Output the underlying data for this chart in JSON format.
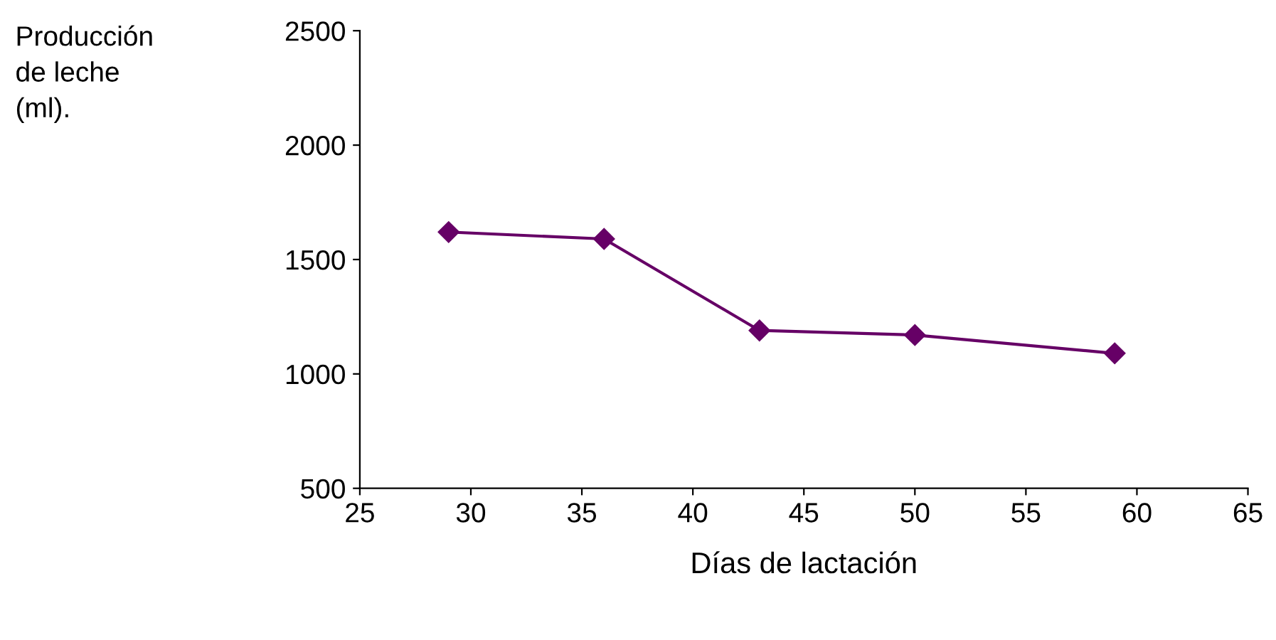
{
  "chart_data": {
    "type": "line",
    "xlabel": "Días de lactación",
    "ylabel": "Producción\nde leche\n(ml).",
    "x": [
      29,
      36,
      43,
      50,
      59
    ],
    "series": [
      {
        "color": "#660066",
        "values": [
          1620,
          1590,
          1190,
          1170,
          1090
        ]
      }
    ],
    "xlim": [
      25,
      65
    ],
    "xticks": [
      25,
      30,
      35,
      40,
      45,
      50,
      55,
      60,
      65
    ],
    "ylim": [
      500,
      2500
    ],
    "yticks": [
      500,
      1000,
      1500,
      2000,
      2500
    ],
    "grid": false,
    "legend": false,
    "marker": "diamond",
    "line_style": "solid"
  }
}
